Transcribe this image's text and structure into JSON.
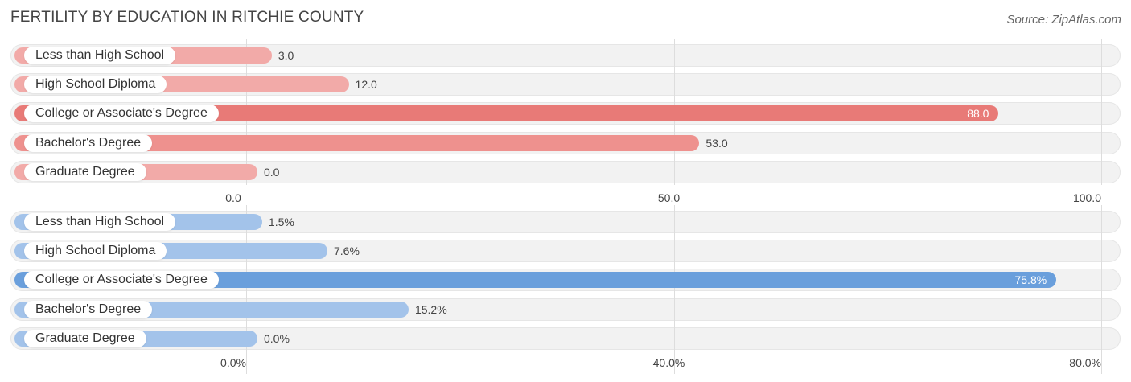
{
  "title": "FERTILITY BY EDUCATION IN RITCHIE COUNTY",
  "source": "Source: ZipAtlas.com",
  "chart_data": [
    {
      "type": "bar",
      "orientation": "horizontal",
      "categories": [
        "Less than High School",
        "High School Diploma",
        "College or Associate's Degree",
        "Bachelor's Degree",
        "Graduate Degree"
      ],
      "values": [
        3.0,
        12.0,
        88.0,
        53.0,
        0.0
      ],
      "value_labels": [
        "3.0",
        "12.0",
        "88.0",
        "53.0",
        "0.0"
      ],
      "xlim": [
        0,
        100
      ],
      "ticks": [
        0,
        50,
        100
      ],
      "tick_labels": [
        "0.0",
        "50.0",
        "100.0"
      ],
      "colors": [
        "#f2aaa8",
        "#f2aaa8",
        "#e87a77",
        "#ee918e",
        "#f2aaa8"
      ],
      "grid": true
    },
    {
      "type": "bar",
      "orientation": "horizontal",
      "categories": [
        "Less than High School",
        "High School Diploma",
        "College or Associate's Degree",
        "Bachelor's Degree",
        "Graduate Degree"
      ],
      "values": [
        1.5,
        7.6,
        75.8,
        15.2,
        0.0
      ],
      "value_labels": [
        "1.5%",
        "7.6%",
        "75.8%",
        "15.2%",
        "0.0%"
      ],
      "xlim": [
        0,
        80
      ],
      "ticks": [
        0,
        40,
        80
      ],
      "tick_labels": [
        "0.0%",
        "40.0%",
        "80.0%"
      ],
      "colors": [
        "#a3c3ea",
        "#a3c3ea",
        "#6a9fdc",
        "#a3c3ea",
        "#a3c3ea"
      ],
      "grid": true
    }
  ]
}
